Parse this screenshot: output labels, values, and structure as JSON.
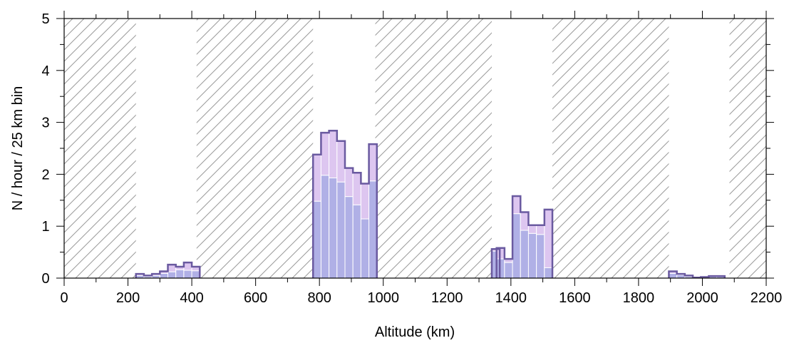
{
  "chart_data": {
    "type": "bar",
    "xlabel": "Altitude (km)",
    "ylabel": "N / hour / 25 km bin",
    "xlim": [
      0,
      2200
    ],
    "ylim": [
      0,
      5
    ],
    "x_ticks": [
      0,
      200,
      400,
      600,
      800,
      1000,
      1200,
      1400,
      1600,
      1800,
      2000,
      2200
    ],
    "y_ticks": [
      0,
      1,
      2,
      3,
      4,
      5
    ],
    "bin_width": 25,
    "hatched_regions": [
      [
        0,
        225
      ],
      [
        415,
        780
      ],
      [
        975,
        1340
      ],
      [
        1530,
        1895
      ],
      [
        2085,
        2200
      ]
    ],
    "colors": {
      "bottom_fill": "#b0b0e6",
      "top_fill": "#ddc6f0",
      "outline": "#6a5aa0",
      "hatch": "#9a9a9a"
    },
    "bin_starts": [
      225,
      250,
      275,
      300,
      325,
      350,
      375,
      400,
      780,
      805,
      830,
      855,
      880,
      905,
      930,
      955,
      1340,
      1355,
      1380,
      1405,
      1430,
      1455,
      1480,
      1505,
      1895,
      1920,
      1945,
      1970,
      1995,
      2020,
      2045
    ],
    "series": [
      {
        "values": [
          0.05,
          0.03,
          0.05,
          0.09,
          0.12,
          0.16,
          0.15,
          0.14,
          1.48,
          1.98,
          1.93,
          1.85,
          1.57,
          1.41,
          1.14,
          1.87,
          0.52,
          0.37,
          0.3,
          1.24,
          0.92,
          0.86,
          0.84,
          0.2,
          0.09,
          0.06,
          0.03,
          0.01,
          0.02,
          0.03,
          0.03
        ]
      },
      {
        "values": [
          0.08,
          0.05,
          0.08,
          0.13,
          0.26,
          0.22,
          0.3,
          0.22,
          2.38,
          2.8,
          2.84,
          2.64,
          2.12,
          2.03,
          1.82,
          2.58,
          0.56,
          0.58,
          0.37,
          1.58,
          1.27,
          1.02,
          1.02,
          1.32,
          0.13,
          0.08,
          0.05,
          0.01,
          0.02,
          0.04,
          0.04
        ]
      }
    ]
  }
}
